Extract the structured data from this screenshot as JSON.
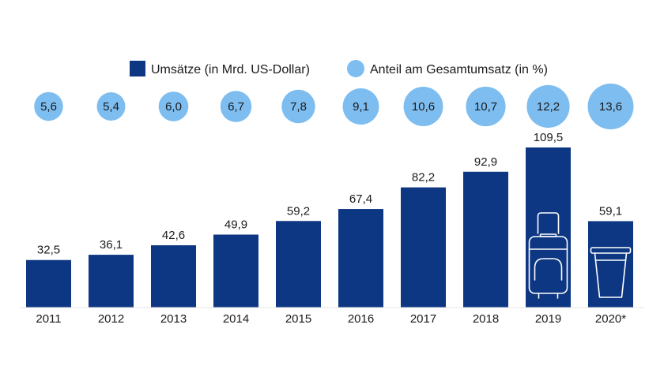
{
  "chart_data": {
    "type": "bar",
    "categories": [
      "2011",
      "2012",
      "2013",
      "2014",
      "2015",
      "2016",
      "2017",
      "2018",
      "2019",
      "2020*"
    ],
    "series": [
      {
        "name": "Umsätze (in Mrd. US-Dollar)",
        "values": [
          32.5,
          36.1,
          42.6,
          49.9,
          59.2,
          67.4,
          82.2,
          92.9,
          109.5,
          59.1
        ],
        "labels": [
          "32,5",
          "36,1",
          "42,6",
          "49,9",
          "59,2",
          "67,4",
          "82,2",
          "92,9",
          "109,5",
          "59,1"
        ],
        "color": "#0d3782"
      },
      {
        "name": "Anteil am Gesamtumsatz (in %)",
        "values": [
          5.6,
          5.4,
          6.0,
          6.7,
          7.8,
          9.1,
          10.6,
          10.7,
          12.2,
          13.6
        ],
        "labels": [
          "5,6",
          "5,4",
          "6,0",
          "6,7",
          "7,8",
          "9,1",
          "10,6",
          "10,7",
          "12,2",
          "13,6"
        ],
        "color": "#7dbdf0"
      }
    ],
    "ylim": [
      0,
      109.5
    ],
    "grid": false,
    "legend": "top-center",
    "icons": [
      {
        "category": "2019",
        "name": "suitcase-icon"
      },
      {
        "category": "2020*",
        "name": "cup-icon"
      }
    ]
  }
}
